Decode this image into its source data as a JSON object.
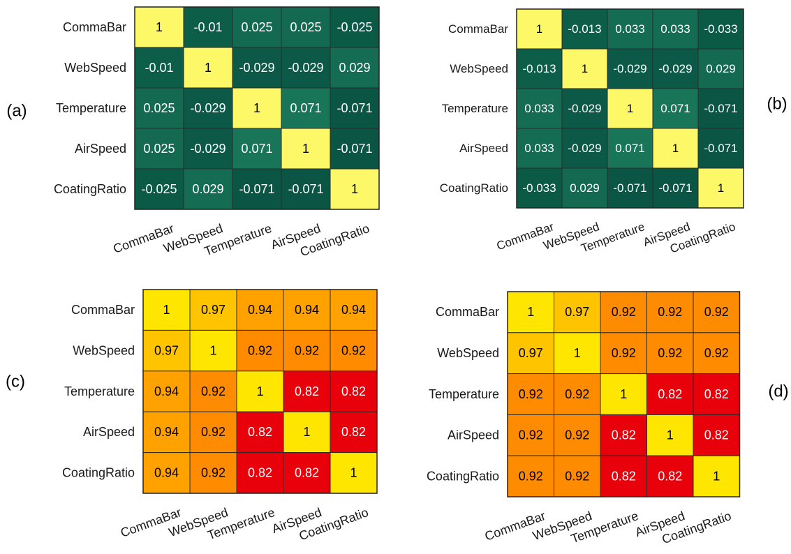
{
  "chart_data": [
    {
      "type": "heatmap",
      "panel_label": "(a)",
      "rows": [
        "CommaBar",
        "WebSpeed",
        "Temperature",
        "AirSpeed",
        "CoatingRatio"
      ],
      "cols": [
        "CommaBar",
        "WebSpeed",
        "Temperature",
        "AirSpeed",
        "CoatingRatio"
      ],
      "values": [
        [
          1,
          -0.01,
          0.025,
          0.025,
          -0.025
        ],
        [
          -0.01,
          1,
          -0.029,
          -0.029,
          0.029
        ],
        [
          0.025,
          -0.029,
          1,
          0.071,
          -0.071
        ],
        [
          0.025,
          -0.029,
          0.071,
          1,
          -0.071
        ],
        [
          -0.025,
          0.029,
          -0.071,
          -0.071,
          1
        ]
      ],
      "labels": [
        [
          "1",
          "-0.01",
          "0.025",
          "0.025",
          "-0.025"
        ],
        [
          "-0.01",
          "1",
          "-0.029",
          "-0.029",
          "0.029"
        ],
        [
          "0.025",
          "-0.029",
          "1",
          "0.071",
          "-0.071"
        ],
        [
          "0.025",
          "-0.029",
          "0.071",
          "1",
          "-0.071"
        ],
        [
          "-0.025",
          "0.029",
          "-0.071",
          "-0.071",
          "1"
        ]
      ],
      "colors": [
        [
          "#fdf868",
          "#0d5e49",
          "#136a50",
          "#136a50",
          "#0b5a46"
        ],
        [
          "#0d5e49",
          "#fdf868",
          "#0b5946",
          "#0b5946",
          "#146c52"
        ],
        [
          "#136a50",
          "#0b5946",
          "#fdf868",
          "#197558",
          "#0a5544"
        ],
        [
          "#136a50",
          "#0b5946",
          "#197558",
          "#fdf868",
          "#0a5544"
        ],
        [
          "#0b5a46",
          "#146c52",
          "#0a5544",
          "#0a5544",
          "#fdf868"
        ]
      ]
    },
    {
      "type": "heatmap",
      "panel_label": "(b)",
      "rows": [
        "CommaBar",
        "WebSpeed",
        "Temperature",
        "AirSpeed",
        "CoatingRatio"
      ],
      "cols": [
        "CommaBar",
        "WebSpeed",
        "Temperature",
        "AirSpeed",
        "CoatingRatio"
      ],
      "values": [
        [
          1,
          -0.013,
          0.033,
          0.033,
          -0.033
        ],
        [
          -0.013,
          1,
          -0.029,
          -0.029,
          0.029
        ],
        [
          0.033,
          -0.029,
          1,
          0.071,
          -0.071
        ],
        [
          0.033,
          -0.029,
          0.071,
          1,
          -0.071
        ],
        [
          -0.033,
          0.029,
          -0.071,
          -0.071,
          1
        ]
      ],
      "labels": [
        [
          "1",
          "-0.013",
          "0.033",
          "0.033",
          "-0.033"
        ],
        [
          "-0.013",
          "1",
          "-0.029",
          "-0.029",
          "0.029"
        ],
        [
          "0.033",
          "-0.029",
          "1",
          "0.071",
          "-0.071"
        ],
        [
          "0.033",
          "-0.029",
          "0.071",
          "1",
          "-0.071"
        ],
        [
          "-0.033",
          "0.029",
          "-0.071",
          "-0.071",
          "1"
        ]
      ],
      "colors": [
        [
          "#fdf868",
          "#0d5e49",
          "#146c52",
          "#146c52",
          "#0b5a46"
        ],
        [
          "#0d5e49",
          "#fdf868",
          "#0b5946",
          "#0b5946",
          "#136a50"
        ],
        [
          "#146c52",
          "#0b5946",
          "#fdf868",
          "#197558",
          "#0a5544"
        ],
        [
          "#146c52",
          "#0b5946",
          "#197558",
          "#fdf868",
          "#0a5544"
        ],
        [
          "#0b5a46",
          "#136a50",
          "#0a5544",
          "#0a5544",
          "#fdf868"
        ]
      ]
    },
    {
      "type": "heatmap",
      "panel_label": "(c)",
      "rows": [
        "CommaBar",
        "WebSpeed",
        "Temperature",
        "AirSpeed",
        "CoatingRatio"
      ],
      "cols": [
        "CommaBar",
        "WebSpeed",
        "Temperature",
        "AirSpeed",
        "CoatingRatio"
      ],
      "values": [
        [
          1,
          0.97,
          0.94,
          0.94,
          0.94
        ],
        [
          0.97,
          1,
          0.92,
          0.92,
          0.92
        ],
        [
          0.94,
          0.92,
          1,
          0.82,
          0.82
        ],
        [
          0.94,
          0.92,
          0.82,
          1,
          0.82
        ],
        [
          0.94,
          0.92,
          0.82,
          0.82,
          1
        ]
      ],
      "labels": [
        [
          "1",
          "0.97",
          "0.94",
          "0.94",
          "0.94"
        ],
        [
          "0.97",
          "1",
          "0.92",
          "0.92",
          "0.92"
        ],
        [
          "0.94",
          "0.92",
          "1",
          "0.82",
          "0.82"
        ],
        [
          "0.94",
          "0.92",
          "0.82",
          "1",
          "0.82"
        ],
        [
          "0.94",
          "0.92",
          "0.82",
          "0.82",
          "1"
        ]
      ],
      "colors": [
        [
          "#ffe600",
          "#ffc400",
          "#ffa200",
          "#ffa200",
          "#ffa200"
        ],
        [
          "#ffc400",
          "#ffe600",
          "#ff8b00",
          "#ff8b00",
          "#ff8b00"
        ],
        [
          "#ffa200",
          "#ff8b00",
          "#ffe600",
          "#e8000a",
          "#e8000a"
        ],
        [
          "#ffa200",
          "#ff8b00",
          "#e8000a",
          "#ffe600",
          "#e8000a"
        ],
        [
          "#ffa200",
          "#ff8b00",
          "#e8000a",
          "#e8000a",
          "#ffe600"
        ]
      ]
    },
    {
      "type": "heatmap",
      "panel_label": "(d)",
      "rows": [
        "CommaBar",
        "WebSpeed",
        "Temperature",
        "AirSpeed",
        "CoatingRatio"
      ],
      "cols": [
        "CommaBar",
        "WebSpeed",
        "Temperature",
        "AirSpeed",
        "CoatingRatio"
      ],
      "values": [
        [
          1,
          0.97,
          0.92,
          0.92,
          0.92
        ],
        [
          0.97,
          1,
          0.92,
          0.92,
          0.92
        ],
        [
          0.92,
          0.92,
          1,
          0.82,
          0.82
        ],
        [
          0.92,
          0.92,
          0.82,
          1,
          0.82
        ],
        [
          0.92,
          0.92,
          0.82,
          0.82,
          1
        ]
      ],
      "labels": [
        [
          "1",
          "0.97",
          "0.92",
          "0.92",
          "0.92"
        ],
        [
          "0.97",
          "1",
          "0.92",
          "0.92",
          "0.92"
        ],
        [
          "0.92",
          "0.92",
          "1",
          "0.82",
          "0.82"
        ],
        [
          "0.92",
          "0.92",
          "0.82",
          "1",
          "0.82"
        ],
        [
          "0.92",
          "0.92",
          "0.82",
          "0.82",
          "1"
        ]
      ],
      "colors": [
        [
          "#ffe600",
          "#ffc400",
          "#ff8b00",
          "#ff8b00",
          "#ff8b00"
        ],
        [
          "#ffc400",
          "#ffe600",
          "#ff8b00",
          "#ff8b00",
          "#ff8b00"
        ],
        [
          "#ff8b00",
          "#ff8b00",
          "#ffe600",
          "#e8000a",
          "#e8000a"
        ],
        [
          "#ff8b00",
          "#ff8b00",
          "#e8000a",
          "#ffe600",
          "#e8000a"
        ],
        [
          "#ff8b00",
          "#ff8b00",
          "#e8000a",
          "#e8000a",
          "#ffe600"
        ]
      ]
    }
  ],
  "style": {
    "green_text": "#ffffff",
    "diag_text": "#000000",
    "warm_text": "#000000",
    "red_text": "#ffffff"
  }
}
